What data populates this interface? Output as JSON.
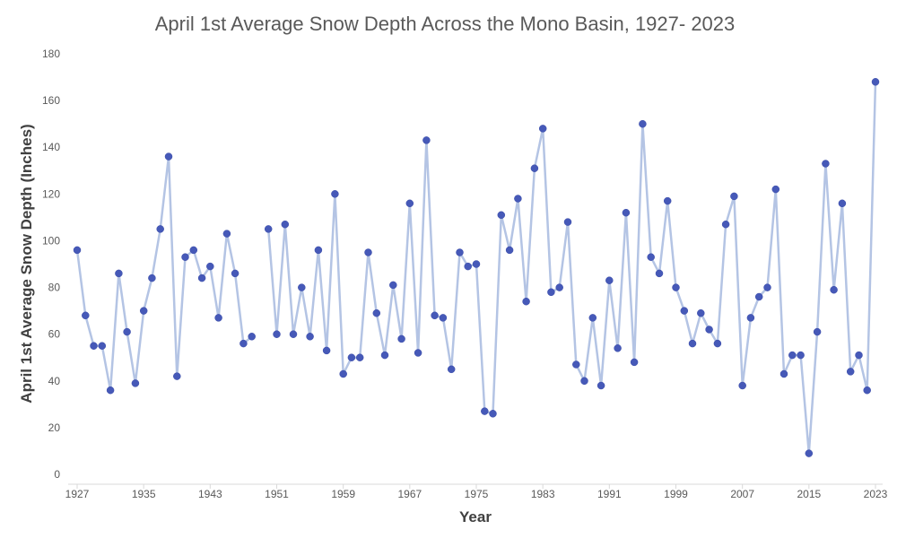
{
  "chart_data": {
    "type": "line",
    "title": "April 1st Average Snow Depth Across the Mono Basin, 1927- 2023",
    "xlabel": "Year",
    "ylabel": "April 1st Average Snow Depth (Inches)",
    "xlim": [
      1927,
      2023
    ],
    "ylim": [
      0,
      180
    ],
    "x_ticks": [
      1927,
      1935,
      1943,
      1951,
      1959,
      1967,
      1975,
      1983,
      1991,
      1999,
      2007,
      2015,
      2023
    ],
    "y_ticks": [
      0,
      20,
      40,
      60,
      80,
      100,
      120,
      140,
      160,
      180
    ],
    "grid": false,
    "legend": "none",
    "colors": {
      "line": "#b4c4e4",
      "marker": "#4659b8",
      "axis": "#d9d9d9",
      "text": "#595959"
    },
    "series": [
      {
        "x": [
          1927,
          1928,
          1929,
          1930,
          1931,
          1932,
          1933,
          1934,
          1935,
          1936,
          1937,
          1938,
          1939,
          1940,
          1941,
          1942,
          1943,
          1944,
          1945,
          1946,
          1947,
          1948,
          1949,
          1950,
          1951,
          1952,
          1953,
          1954,
          1955,
          1956,
          1957,
          1958,
          1959,
          1960,
          1961,
          1962,
          1963,
          1964,
          1965,
          1966,
          1967,
          1968,
          1969,
          1970,
          1971,
          1972,
          1973,
          1974,
          1975,
          1976,
          1977,
          1978,
          1979,
          1980,
          1981,
          1982,
          1983,
          1984,
          1985,
          1986,
          1987,
          1988,
          1989,
          1990,
          1991,
          1992,
          1993,
          1994,
          1995,
          1996,
          1997,
          1998,
          1999,
          2000,
          2001,
          2002,
          2003,
          2004,
          2005,
          2006,
          2007,
          2008,
          2009,
          2010,
          2011,
          2012,
          2013,
          2014,
          2015,
          2016,
          2017,
          2018,
          2019,
          2020,
          2021,
          2022,
          2023
        ],
        "values": [
          96,
          68,
          55,
          55,
          36,
          86,
          61,
          39,
          70,
          84,
          105,
          136,
          42,
          93,
          96,
          84,
          89,
          67,
          103,
          86,
          56,
          59,
          null,
          105,
          60,
          107,
          60,
          80,
          59,
          96,
          53,
          120,
          43,
          50,
          50,
          95,
          69,
          51,
          81,
          58,
          116,
          52,
          143,
          68,
          67,
          45,
          95,
          89,
          90,
          27,
          26,
          111,
          96,
          118,
          74,
          131,
          148,
          78,
          80,
          108,
          47,
          40,
          67,
          38,
          83,
          54,
          112,
          48,
          150,
          93,
          86,
          117,
          80,
          70,
          56,
          69,
          62,
          56,
          107,
          119,
          38,
          67,
          76,
          80,
          122,
          43,
          51,
          51,
          9,
          61,
          133,
          79,
          116,
          44,
          51,
          36,
          168
        ]
      }
    ]
  }
}
